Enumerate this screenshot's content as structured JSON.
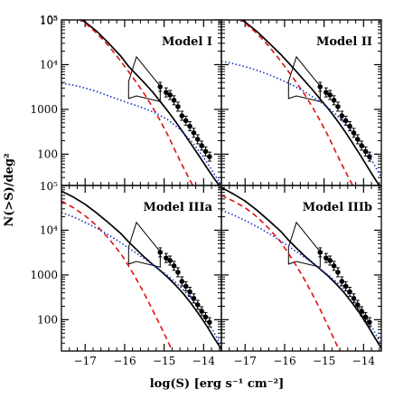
{
  "chart_data": {
    "type": "line",
    "xlabel": "log(S) [erg s⁻¹ cm⁻²]",
    "ylabel": "N(>S)/deg²",
    "xlim": [
      -17.6,
      -13.55
    ],
    "ylim_log10": [
      1.3,
      5.0
    ],
    "x_ticks": [
      -17,
      -16,
      -15,
      -14
    ],
    "x_tick_labels": [
      "−17",
      "−16",
      "−15",
      "−14"
    ],
    "y_ticks": [
      100,
      1000,
      10000,
      100000
    ],
    "y_tick_labels": [
      "100",
      "1000",
      "10⁴",
      "10⁵"
    ],
    "y_scale": "log",
    "line_styles": {
      "total": {
        "color": "#000000",
        "style": "solid"
      },
      "component_red": {
        "color": "#e01010",
        "style": "dashed"
      },
      "component_blue": {
        "color": "#1030c0",
        "style": "dotted"
      }
    },
    "observations": {
      "x": [
        -15.1,
        -14.95,
        -14.85,
        -14.75,
        -14.65,
        -14.55,
        -14.45,
        -14.35,
        -14.25,
        -14.15,
        -14.05,
        -13.95,
        -13.85
      ],
      "y": [
        3200,
        2400,
        2100,
        1600,
        1150,
        720,
        560,
        420,
        300,
        215,
        155,
        115,
        88
      ]
    },
    "constraint_polygon": {
      "x": [
        -15.9,
        -15.9,
        -15.7,
        -15.1,
        -15.1,
        -15.7
      ],
      "y": [
        1750,
        4200,
        15000,
        3300,
        1500,
        2000
      ]
    },
    "panels": [
      {
        "title": "Model I",
        "series": [
          {
            "key": "total",
            "x": [
              -17.6,
              -17.3,
              -17.0,
              -16.7,
              -16.4,
              -16.1,
              -15.9,
              -15.7,
              -15.5,
              -15.3,
              -15.1,
              -14.9,
              -14.7,
              -14.5,
              -14.3,
              -14.1,
              -13.9,
              -13.7,
              -13.55
            ],
            "y": [
              160000,
              125000,
              90000,
              55000,
              30000,
              15500,
              9200,
              6000,
              3900,
              2500,
              1500,
              900,
              520,
              290,
              160,
              87,
              47,
              26,
              17
            ]
          },
          {
            "key": "component_red",
            "x": [
              -17.6,
              -17.3,
              -17.0,
              -16.7,
              -16.4,
              -16.1,
              -15.9,
              -15.7,
              -15.5,
              -15.3,
              -15.1,
              -14.9,
              -14.7,
              -14.5,
              -14.3,
              -14.1
            ],
            "y": [
              160000,
              120000,
              85000,
              50000,
              26000,
              12000,
              7000,
              4000,
              2200,
              1150,
              560,
              260,
              110,
              48,
              22,
              9
            ]
          },
          {
            "key": "component_blue",
            "x": [
              -17.6,
              -17.3,
              -17.0,
              -16.7,
              -16.4,
              -16.1,
              -15.8,
              -15.5,
              -15.2,
              -14.9,
              -14.6,
              -14.3,
              -14.0,
              -13.8,
              -13.55
            ],
            "y": [
              3800,
              3500,
              3000,
              2500,
              2000,
              1600,
              1300,
              1050,
              820,
              580,
              360,
              190,
              85,
              45,
              20
            ]
          }
        ]
      },
      {
        "title": "Model II",
        "series": [
          {
            "key": "total",
            "x": [
              -17.6,
              -17.3,
              -17.0,
              -16.7,
              -16.4,
              -16.1,
              -15.9,
              -15.7,
              -15.5,
              -15.3,
              -15.1,
              -14.9,
              -14.7,
              -14.5,
              -14.3,
              -14.1,
              -13.9,
              -13.7,
              -13.55
            ],
            "y": [
              160000,
              125000,
              90000,
              55000,
              31000,
              17000,
              11000,
              7000,
              4400,
              2800,
              1700,
              1050,
              620,
              350,
              190,
              100,
              52,
              27,
              17
            ]
          },
          {
            "key": "component_red",
            "x": [
              -17.6,
              -17.3,
              -17.0,
              -16.7,
              -16.4,
              -16.1,
              -15.9,
              -15.7,
              -15.5,
              -15.3,
              -15.1,
              -14.9,
              -14.7,
              -14.5,
              -14.3,
              -14.1
            ],
            "y": [
              160000,
              120000,
              85000,
              50000,
              26000,
              12000,
              7000,
              4000,
              2200,
              1150,
              560,
              260,
              110,
              48,
              22,
              9
            ]
          },
          {
            "key": "component_blue",
            "x": [
              -17.6,
              -17.3,
              -17.0,
              -16.7,
              -16.4,
              -16.1,
              -15.8,
              -15.5,
              -15.2,
              -14.9,
              -14.6,
              -14.3,
              -14.0,
              -13.8,
              -13.55
            ],
            "y": [
              12000,
              10500,
              9000,
              7500,
              6000,
              4600,
              3500,
              2500,
              1700,
              1100,
              640,
              330,
              150,
              75,
              30
            ]
          }
        ]
      },
      {
        "title": "Model IIIa",
        "series": [
          {
            "key": "total",
            "x": [
              -17.6,
              -17.3,
              -17.0,
              -16.7,
              -16.4,
              -16.1,
              -15.9,
              -15.7,
              -15.5,
              -15.3,
              -15.1,
              -14.9,
              -14.7,
              -14.5,
              -14.3,
              -14.1,
              -13.9,
              -13.7,
              -13.55
            ],
            "y": [
              75000,
              55000,
              38000,
              24000,
              14500,
              8500,
              5500,
              3700,
              2500,
              1750,
              1250,
              870,
              580,
              370,
              220,
              125,
              68,
              35,
              22
            ]
          },
          {
            "key": "component_red",
            "x": [
              -17.6,
              -17.3,
              -17.0,
              -16.7,
              -16.4,
              -16.1,
              -15.9,
              -15.7,
              -15.5,
              -15.3,
              -15.1,
              -14.9,
              -14.7,
              -14.5
            ],
            "y": [
              45000,
              32000,
              21000,
              12500,
              6500,
              3000,
              1600,
              800,
              380,
              170,
              75,
              32,
              14,
              6
            ]
          },
          {
            "key": "component_blue",
            "x": [
              -17.6,
              -17.3,
              -17.0,
              -16.7,
              -16.4,
              -16.1,
              -15.8,
              -15.5,
              -15.2,
              -14.9,
              -14.6,
              -14.3,
              -14.0,
              -13.8,
              -13.55
            ],
            "y": [
              25000,
              20000,
              15000,
              11000,
              7800,
              5300,
              3500,
              2300,
              1500,
              950,
              560,
              290,
              130,
              65,
              26
            ]
          }
        ]
      },
      {
        "title": "Model IIIb",
        "series": [
          {
            "key": "total",
            "x": [
              -17.6,
              -17.3,
              -17.0,
              -16.7,
              -16.4,
              -16.1,
              -15.9,
              -15.7,
              -15.5,
              -15.3,
              -15.1,
              -14.9,
              -14.7,
              -14.5,
              -14.3,
              -14.1,
              -13.9,
              -13.7,
              -13.55
            ],
            "y": [
              90000,
              65000,
              45000,
              28000,
              16500,
              9500,
              6000,
              4000,
              2700,
              1900,
              1350,
              950,
              640,
              410,
              245,
              140,
              75,
              38,
              23
            ]
          },
          {
            "key": "component_red",
            "x": [
              -17.6,
              -17.3,
              -17.0,
              -16.7,
              -16.4,
              -16.1,
              -15.9,
              -15.7,
              -15.5,
              -15.3,
              -15.1,
              -14.9,
              -14.7,
              -14.5,
              -14.3
            ],
            "y": [
              60000,
              45000,
              32000,
              20000,
              11000,
              5500,
              3000,
              1600,
              800,
              380,
              170,
              72,
              30,
              13,
              6
            ]
          },
          {
            "key": "component_blue",
            "x": [
              -17.6,
              -17.3,
              -17.0,
              -16.7,
              -16.4,
              -16.1,
              -15.8,
              -15.5,
              -15.2,
              -14.9,
              -14.6,
              -14.3,
              -14.0,
              -13.8,
              -13.55
            ],
            "y": [
              28000,
              22000,
              16500,
              12000,
              8500,
              5800,
              3800,
              2500,
              1600,
              1000,
              600,
              310,
              140,
              70,
              28
            ]
          }
        ]
      }
    ]
  }
}
